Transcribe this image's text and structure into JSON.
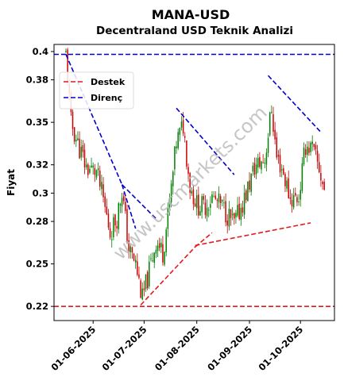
{
  "chart_data": {
    "type": "candlestick",
    "title": "MANA-USD",
    "subtitle": "Decentraland USD Teknik Analizi",
    "xlabel": "",
    "ylabel": "Fiyat",
    "watermark": "www.uscmarkets.com",
    "x_range": [
      "2025-05-09",
      "2025-10-21"
    ],
    "ylim": [
      0.21,
      0.405
    ],
    "x_ticks": [
      "01-06-2025",
      "01-07-2025",
      "01-08-2025",
      "01-09-2025",
      "01-10-2025"
    ],
    "y_ticks": [
      0.22,
      0.25,
      0.28,
      0.3,
      0.32,
      0.35,
      0.38,
      0.4
    ],
    "y_tick_labels": [
      "0.22",
      "0.25",
      "0.28",
      "0.3",
      "0.32",
      "0.35",
      "0.38",
      "0.4"
    ],
    "colors": {
      "up": "#008000",
      "down": "#cc0000",
      "support": "#e31a1c",
      "resistance": "#0000cc"
    },
    "grid": false,
    "legend": {
      "placement": "top-left",
      "entries": [
        {
          "label": "Destek",
          "color": "#e31a1c",
          "style": "dashed"
        },
        {
          "label": "Direnç",
          "color": "#0000cc",
          "style": "dashed"
        }
      ]
    },
    "support_lines": [
      {
        "points": [
          [
            "2025-05-09",
            0.22
          ],
          [
            "2025-10-21",
            0.22
          ]
        ]
      },
      {
        "points": [
          [
            "2025-06-29",
            0.221
          ],
          [
            "2025-07-31",
            0.262
          ]
        ]
      },
      {
        "points": [
          [
            "2025-07-31",
            0.262
          ],
          [
            "2025-08-10",
            0.272
          ]
        ]
      },
      {
        "points": [
          [
            "2025-07-31",
            0.263
          ],
          [
            "2025-10-07",
            0.279
          ]
        ]
      }
    ],
    "resistance_lines": [
      {
        "points": [
          [
            "2025-05-09",
            0.398
          ],
          [
            "2025-10-21",
            0.398
          ]
        ]
      },
      {
        "points": [
          [
            "2025-05-16",
            0.398
          ],
          [
            "2025-06-18",
            0.306
          ]
        ]
      },
      {
        "points": [
          [
            "2025-06-18",
            0.306
          ],
          [
            "2025-07-08",
            0.282
          ]
        ]
      },
      {
        "points": [
          [
            "2025-06-18",
            0.306
          ],
          [
            "2025-06-26",
            0.275
          ]
        ]
      },
      {
        "points": [
          [
            "2025-07-20",
            0.36
          ],
          [
            "2025-08-23",
            0.313
          ]
        ]
      },
      {
        "points": [
          [
            "2025-09-12",
            0.383
          ],
          [
            "2025-10-13",
            0.343
          ]
        ]
      }
    ],
    "price_path": [
      [
        "2025-05-16",
        0.398
      ],
      [
        "2025-05-19",
        0.35
      ],
      [
        "2025-05-23",
        0.335
      ],
      [
        "2025-05-28",
        0.318
      ],
      [
        "2025-06-03",
        0.315
      ],
      [
        "2025-06-07",
        0.295
      ],
      [
        "2025-06-11",
        0.272
      ],
      [
        "2025-06-15",
        0.283
      ],
      [
        "2025-06-18",
        0.302
      ],
      [
        "2025-06-22",
        0.26
      ],
      [
        "2025-06-26",
        0.25
      ],
      [
        "2025-06-30",
        0.225
      ],
      [
        "2025-07-04",
        0.245
      ],
      [
        "2025-07-08",
        0.266
      ],
      [
        "2025-07-12",
        0.258
      ],
      [
        "2025-07-16",
        0.292
      ],
      [
        "2025-07-20",
        0.336
      ],
      [
        "2025-07-24",
        0.348
      ],
      [
        "2025-07-28",
        0.305
      ],
      [
        "2025-08-01",
        0.292
      ],
      [
        "2025-08-05",
        0.29
      ],
      [
        "2025-08-10",
        0.297
      ],
      [
        "2025-08-16",
        0.29
      ],
      [
        "2025-08-23",
        0.278
      ],
      [
        "2025-08-29",
        0.296
      ],
      [
        "2025-09-04",
        0.318
      ],
      [
        "2025-09-10",
        0.324
      ],
      [
        "2025-09-14",
        0.36
      ],
      [
        "2025-09-17",
        0.325
      ],
      [
        "2025-09-20",
        0.318
      ],
      [
        "2025-09-25",
        0.296
      ],
      [
        "2025-09-30",
        0.297
      ],
      [
        "2025-10-04",
        0.334
      ],
      [
        "2025-10-08",
        0.331
      ],
      [
        "2025-10-12",
        0.317
      ],
      [
        "2025-10-15",
        0.302
      ]
    ]
  }
}
